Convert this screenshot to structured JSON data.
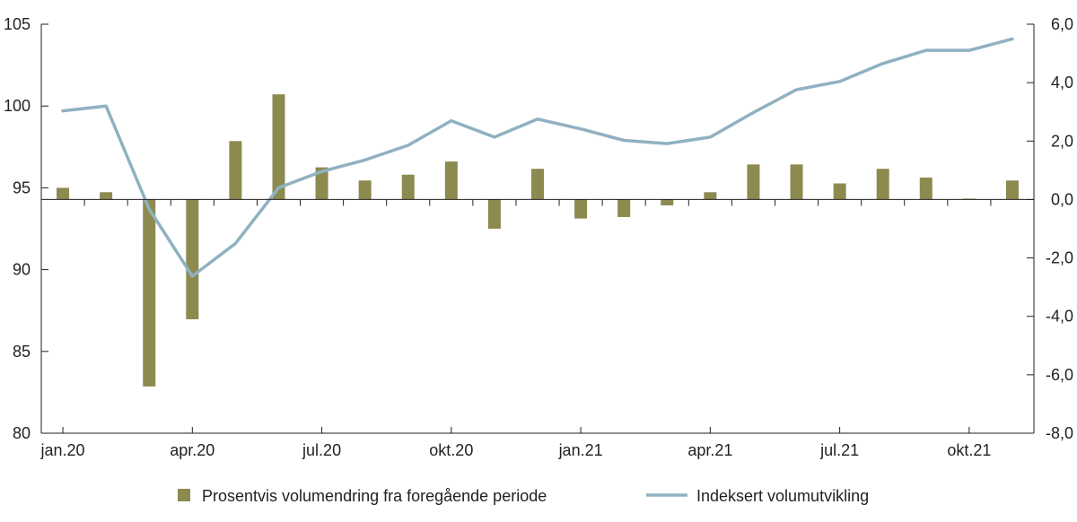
{
  "chart_data": {
    "type": "bar+line",
    "title": "",
    "categories": [
      "jan.20",
      "feb.20",
      "mar.20",
      "apr.20",
      "mai.20",
      "jun.20",
      "jul.20",
      "aug.20",
      "sep.20",
      "okt.20",
      "nov.20",
      "des.20",
      "jan.21",
      "feb.21",
      "mar.21",
      "apr.21",
      "mai.21",
      "jun.21",
      "jul.21",
      "aug.21",
      "sep.21",
      "okt.21",
      "nov.21"
    ],
    "x_tick_labels": [
      "jan.20",
      "apr.20",
      "jul.20",
      "okt.20",
      "jan.21",
      "apr.21",
      "jul.21",
      "okt.21"
    ],
    "left_axis": {
      "ylim": [
        80,
        105
      ],
      "ticks": [
        "80",
        "85",
        "90",
        "95",
        "100",
        "105"
      ]
    },
    "right_axis": {
      "ylim": [
        -8,
        6
      ],
      "ticks": [
        "-8,0",
        "-6,0",
        "-4,0",
        "-2,0",
        "0,0",
        "2,0",
        "4,0",
        "6,0"
      ]
    },
    "series": [
      {
        "name": "Prosentvis volumendring fra foregående periode",
        "kind": "bar",
        "axis": "right",
        "color": "#8c8a4f",
        "values": [
          0.4,
          0.25,
          -6.4,
          -4.1,
          2.0,
          3.6,
          1.1,
          0.65,
          0.85,
          1.3,
          -1.0,
          1.05,
          -0.65,
          -0.6,
          -0.2,
          0.25,
          1.2,
          1.2,
          0.55,
          1.05,
          0.75,
          0.03,
          0.65
        ]
      },
      {
        "name": "Indeksert volumutvikling",
        "kind": "line",
        "axis": "left",
        "color": "#8fb1c1",
        "values": [
          99.7,
          100.0,
          93.7,
          89.6,
          91.6,
          95.0,
          96.0,
          96.7,
          97.6,
          99.1,
          98.1,
          99.2,
          98.6,
          97.9,
          97.7,
          98.1,
          99.6,
          101.0,
          101.5,
          102.6,
          103.4,
          103.4,
          104.1
        ]
      }
    ],
    "legend_position": "bottom",
    "grid": false
  },
  "colors": {
    "axis": "#231f20",
    "bar": "#8c8a4f",
    "line": "#8fb1c1"
  }
}
